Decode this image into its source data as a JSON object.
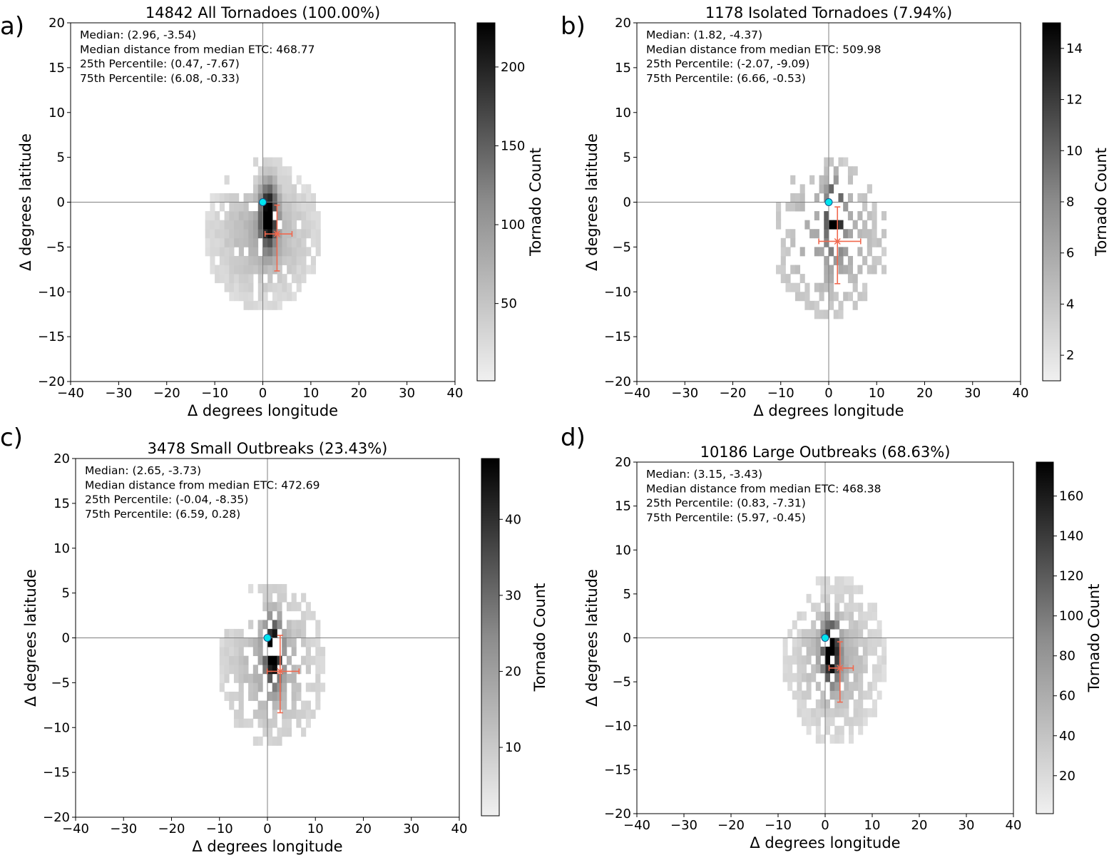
{
  "figure": {
    "axis_ranges": {
      "xlim": [
        -40,
        40
      ],
      "ylim": [
        -20,
        20
      ]
    },
    "x_ticks": [
      -40,
      -30,
      -20,
      -10,
      0,
      10,
      20,
      30,
      40
    ],
    "y_ticks": [
      -20,
      -15,
      -10,
      -5,
      0,
      5,
      10,
      15,
      20
    ],
    "colors": {
      "histogram_dark": "#000000",
      "histogram_light": "#f0f0f0",
      "median_marker": "#00e5ee",
      "marker_edge": "#1a4f8a",
      "iqr_errorbar": "#f0684e",
      "zero_lines": "#808080"
    }
  },
  "chart_data": [
    {
      "type": "heatmap",
      "panel": "a)",
      "title": "14842 All Tornadoes (100.00%)",
      "xlabel": "Δ degrees longitude",
      "ylabel": "Δ degrees latitude",
      "colorbar_label": "Tornado Count",
      "colorbar_range": [
        1,
        228
      ],
      "colorbar_ticks": [
        50,
        100,
        150,
        200
      ],
      "stats_lines": [
        "Median: (2.96, -3.54)",
        "Median distance from median ETC: 468.77",
        "25th Percentile: (0.47, -7.67)",
        "75th Percentile: (6.08, -0.33)"
      ],
      "median": [
        2.96,
        -3.54
      ],
      "p25": [
        0.47,
        -7.67
      ],
      "p75": [
        6.08,
        -0.33
      ],
      "etc_center": [
        0,
        0
      ],
      "count": 14842
    },
    {
      "type": "heatmap",
      "panel": "b)",
      "title": "1178 Isolated Tornadoes (7.94%)",
      "xlabel": "Δ degrees longitude",
      "ylabel": "Δ degrees latitude",
      "colorbar_label": "Tornado Count",
      "colorbar_range": [
        1,
        15
      ],
      "colorbar_ticks": [
        2,
        4,
        6,
        8,
        10,
        12,
        14
      ],
      "stats_lines": [
        "Median: (1.82, -4.37)",
        "Median distance from median ETC: 509.98",
        "25th Percentile: (-2.07, -9.09)",
        "75th Percentile: (6.66, -0.53)"
      ],
      "median": [
        1.82,
        -4.37
      ],
      "p25": [
        -2.07,
        -9.09
      ],
      "p75": [
        6.66,
        -0.53
      ],
      "etc_center": [
        0,
        0
      ],
      "count": 1178
    },
    {
      "type": "heatmap",
      "panel": "c)",
      "title": "3478 Small Outbreaks (23.43%)",
      "xlabel": "Δ degrees longitude",
      "ylabel": "Δ degrees latitude",
      "colorbar_label": "Tornado Count",
      "colorbar_range": [
        1,
        48
      ],
      "colorbar_ticks": [
        10,
        20,
        30,
        40
      ],
      "stats_lines": [
        "Median: (2.65, -3.73)",
        "Median distance from median ETC: 472.69",
        "25th Percentile: (-0.04, -8.35)",
        "75th Percentile: (6.59, 0.28)"
      ],
      "median": [
        2.65,
        -3.73
      ],
      "p25": [
        -0.04,
        -8.35
      ],
      "p75": [
        6.59,
        0.28
      ],
      "etc_center": [
        0,
        0
      ],
      "count": 3478
    },
    {
      "type": "heatmap",
      "panel": "d)",
      "title": "10186 Large Outbreaks (68.63%)",
      "xlabel": "Δ degrees longitude",
      "ylabel": "Δ degrees latitude",
      "colorbar_label": "Tornado Count",
      "colorbar_range": [
        1,
        177
      ],
      "colorbar_ticks": [
        20,
        40,
        60,
        80,
        100,
        120,
        140,
        160
      ],
      "stats_lines": [
        "Median: (3.15, -3.43)",
        "Median distance from median ETC: 468.38",
        "25th Percentile: (0.83, -7.31)",
        "75th Percentile: (5.97, -0.45)"
      ],
      "median": [
        3.15,
        -3.43
      ],
      "p25": [
        0.83,
        -7.31
      ],
      "p75": [
        5.97,
        -0.45
      ],
      "etc_center": [
        0,
        0
      ],
      "count": 10186
    }
  ]
}
